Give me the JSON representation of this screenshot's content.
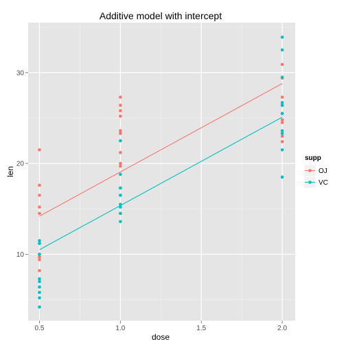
{
  "chart_data": {
    "type": "scatter",
    "title": "Additive model with intercept",
    "xlabel": "dose",
    "ylabel": "len",
    "xlim": [
      0.43,
      2.08
    ],
    "ylim": [
      2.7,
      35.5
    ],
    "xticks": [
      0.5,
      1.0,
      1.5,
      2.0
    ],
    "xtick_labels": [
      "0.5",
      "1.0",
      "1.5",
      "2.0"
    ],
    "yticks": [
      10,
      20,
      30
    ],
    "ytick_labels": [
      "10",
      "20",
      "30"
    ],
    "grid": true,
    "background": "#e5e5e5",
    "legend": {
      "title": "supp",
      "position": "right",
      "entries": [
        {
          "label": "OJ",
          "color": "#f8766d"
        },
        {
          "label": "VC",
          "color": "#00bfc4"
        }
      ]
    },
    "series": [
      {
        "name": "OJ",
        "color": "#f8766d",
        "points": [
          {
            "x": 0.5,
            "y": 15.2
          },
          {
            "x": 0.5,
            "y": 21.5
          },
          {
            "x": 0.5,
            "y": 17.6
          },
          {
            "x": 0.5,
            "y": 9.7
          },
          {
            "x": 0.5,
            "y": 14.5
          },
          {
            "x": 0.5,
            "y": 10.0
          },
          {
            "x": 0.5,
            "y": 8.2
          },
          {
            "x": 0.5,
            "y": 9.4
          },
          {
            "x": 0.5,
            "y": 16.5
          },
          {
            "x": 0.5,
            "y": 9.7
          },
          {
            "x": 1.0,
            "y": 19.7
          },
          {
            "x": 1.0,
            "y": 23.3
          },
          {
            "x": 1.0,
            "y": 23.6
          },
          {
            "x": 1.0,
            "y": 26.4
          },
          {
            "x": 1.0,
            "y": 20.0
          },
          {
            "x": 1.0,
            "y": 25.2
          },
          {
            "x": 1.0,
            "y": 25.8
          },
          {
            "x": 1.0,
            "y": 21.2
          },
          {
            "x": 1.0,
            "y": 14.5
          },
          {
            "x": 1.0,
            "y": 27.3
          },
          {
            "x": 2.0,
            "y": 25.5
          },
          {
            "x": 2.0,
            "y": 26.4
          },
          {
            "x": 2.0,
            "y": 22.4
          },
          {
            "x": 2.0,
            "y": 24.5
          },
          {
            "x": 2.0,
            "y": 24.8
          },
          {
            "x": 2.0,
            "y": 30.9
          },
          {
            "x": 2.0,
            "y": 26.4
          },
          {
            "x": 2.0,
            "y": 27.3
          },
          {
            "x": 2.0,
            "y": 29.4
          },
          {
            "x": 2.0,
            "y": 23.0
          }
        ],
        "fit_line": {
          "x": [
            0.5,
            2.0
          ],
          "y": [
            14.2,
            28.8
          ]
        }
      },
      {
        "name": "VC",
        "color": "#00bfc4",
        "points": [
          {
            "x": 0.5,
            "y": 4.2
          },
          {
            "x": 0.5,
            "y": 11.5
          },
          {
            "x": 0.5,
            "y": 7.3
          },
          {
            "x": 0.5,
            "y": 5.8
          },
          {
            "x": 0.5,
            "y": 6.4
          },
          {
            "x": 0.5,
            "y": 10.0
          },
          {
            "x": 0.5,
            "y": 11.2
          },
          {
            "x": 0.5,
            "y": 11.2
          },
          {
            "x": 0.5,
            "y": 5.2
          },
          {
            "x": 0.5,
            "y": 7.0
          },
          {
            "x": 1.0,
            "y": 16.5
          },
          {
            "x": 1.0,
            "y": 16.5
          },
          {
            "x": 1.0,
            "y": 15.2
          },
          {
            "x": 1.0,
            "y": 17.3
          },
          {
            "x": 1.0,
            "y": 22.5
          },
          {
            "x": 1.0,
            "y": 17.3
          },
          {
            "x": 1.0,
            "y": 13.6
          },
          {
            "x": 1.0,
            "y": 14.5
          },
          {
            "x": 1.0,
            "y": 18.8
          },
          {
            "x": 1.0,
            "y": 15.5
          },
          {
            "x": 2.0,
            "y": 23.6
          },
          {
            "x": 2.0,
            "y": 18.5
          },
          {
            "x": 2.0,
            "y": 33.9
          },
          {
            "x": 2.0,
            "y": 25.5
          },
          {
            "x": 2.0,
            "y": 26.4
          },
          {
            "x": 2.0,
            "y": 32.5
          },
          {
            "x": 2.0,
            "y": 26.7
          },
          {
            "x": 2.0,
            "y": 21.5
          },
          {
            "x": 2.0,
            "y": 23.3
          },
          {
            "x": 2.0,
            "y": 29.5
          }
        ],
        "fit_line": {
          "x": [
            0.5,
            2.0
          ],
          "y": [
            10.5,
            25.1
          ]
        }
      }
    ]
  }
}
